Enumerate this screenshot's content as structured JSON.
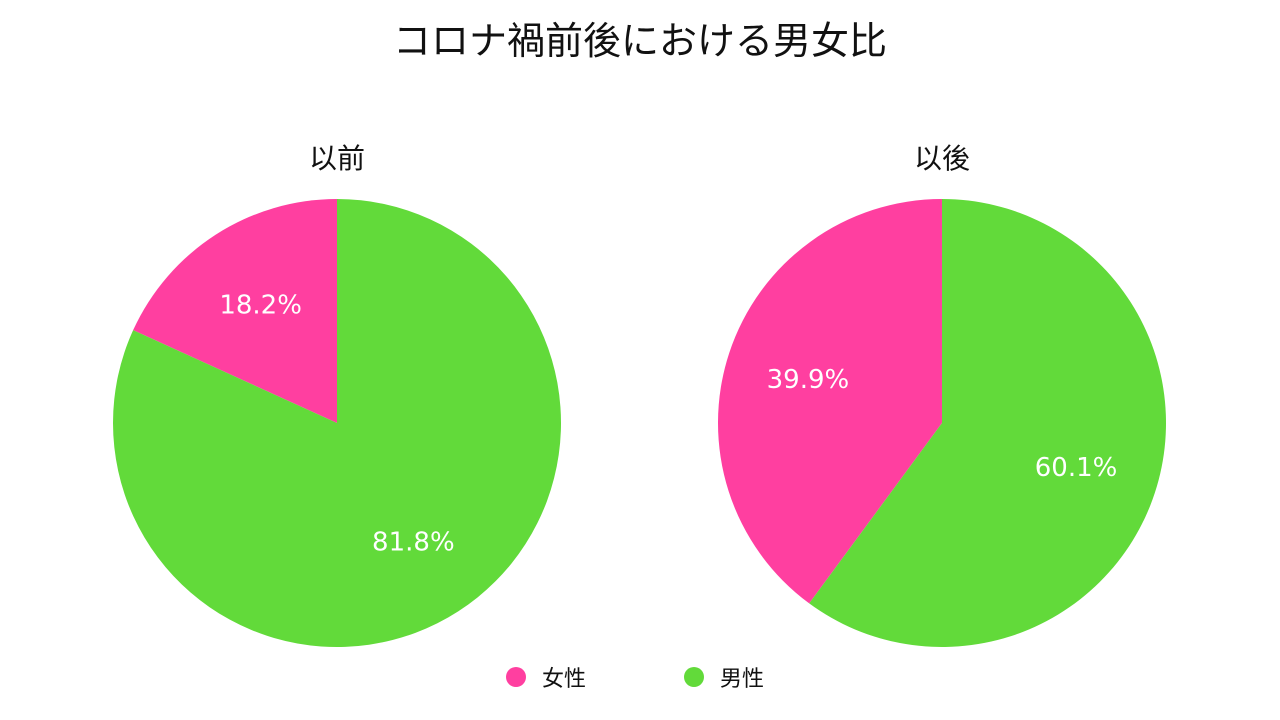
{
  "chart_data": {
    "type": "pie",
    "title": "コロナ禍前後における男女比",
    "colors": [
      "#FF3FA0",
      "#62DA3A"
    ],
    "legend_position": "bottom",
    "legend": [
      "女性",
      "男性"
    ],
    "charts": [
      {
        "title": "以前",
        "slices": [
          {
            "name": "女性",
            "value": 18.2,
            "label": "18.2%"
          },
          {
            "name": "男性",
            "value": 81.8,
            "label": "81.8%"
          }
        ]
      },
      {
        "title": "以後",
        "slices": [
          {
            "name": "女性",
            "value": 39.9,
            "label": "39.9%"
          },
          {
            "name": "男性",
            "value": 60.1,
            "label": "60.1%"
          }
        ]
      }
    ]
  }
}
